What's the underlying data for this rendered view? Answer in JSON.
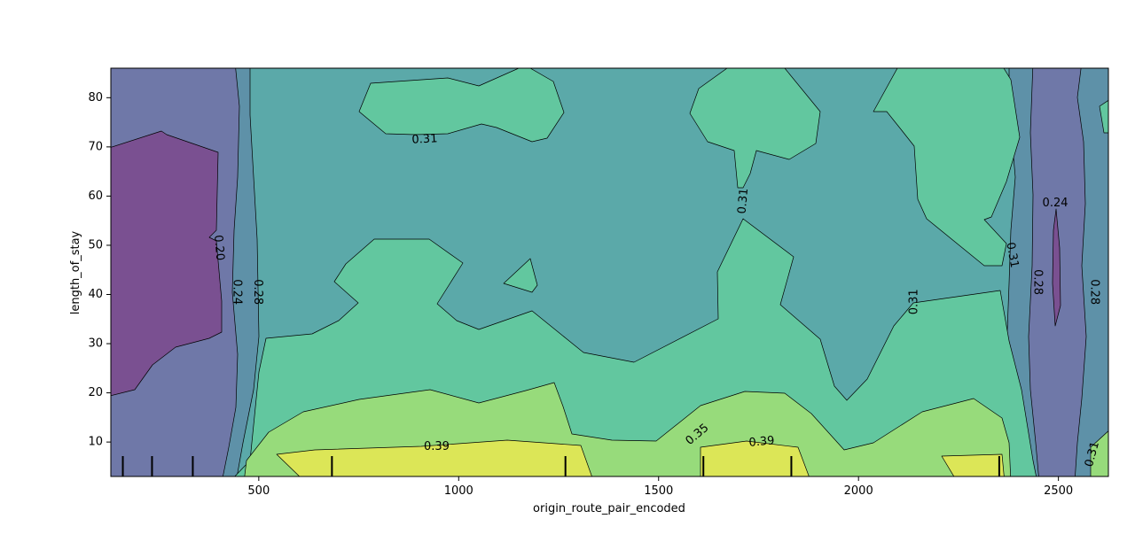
{
  "chart_data": {
    "type": "contour",
    "xlabel": "origin_route_pair_encoded",
    "ylabel": "length_of_stay",
    "xlim": [
      130,
      2625
    ],
    "ylim": [
      3,
      86
    ],
    "xticks": [
      500,
      1000,
      1500,
      2000,
      2500
    ],
    "yticks": [
      10,
      20,
      30,
      40,
      50,
      60,
      70,
      80
    ],
    "levels": [
      0.2,
      0.24,
      0.28,
      0.31,
      0.35,
      0.39
    ],
    "colors": {
      "lt_0.20": "#7a5091",
      "0.20_0.24": "#6f78a8",
      "0.24_0.28": "#5e91a8",
      "0.28_0.31": "#5ba9a9",
      "0.31_0.35": "#62c79f",
      "0.35_0.39": "#97db7b",
      "gt_0.39": "#dce657"
    },
    "contour_labels": [
      {
        "text": "0.20",
        "x": 400,
        "y": 49.5,
        "rotation": 85
      },
      {
        "text": "0.24",
        "x": 445,
        "y": 40.5,
        "rotation": 90
      },
      {
        "text": "0.28",
        "x": 497,
        "y": 40.5,
        "rotation": 90
      },
      {
        "text": "0.31",
        "x": 915,
        "y": 71.5,
        "rotation": -3
      },
      {
        "text": "0.31",
        "x": 1712,
        "y": 59,
        "rotation": -85
      },
      {
        "text": "0.31",
        "x": 2139,
        "y": 38.5,
        "rotation": -90
      },
      {
        "text": "0.31",
        "x": 2384,
        "y": 48,
        "rotation": 80
      },
      {
        "text": "0.28",
        "x": 2448,
        "y": 42.5,
        "rotation": 90
      },
      {
        "text": "0.24",
        "x": 2492,
        "y": 58.5,
        "rotation": 0
      },
      {
        "text": "0.28",
        "x": 2590,
        "y": 40.5,
        "rotation": 90
      },
      {
        "text": "0.39",
        "x": 945,
        "y": 9,
        "rotation": 0
      },
      {
        "text": "0.35",
        "x": 1597,
        "y": 11.5,
        "rotation": -40
      },
      {
        "text": "0.39",
        "x": 1758,
        "y": 10,
        "rotation": -5
      },
      {
        "text": "0.31",
        "x": 2585,
        "y": 7.5,
        "rotation": -75
      }
    ],
    "rug_x": [
      160,
      233,
      335,
      683,
      1267,
      1612,
      1832,
      2352
    ]
  }
}
